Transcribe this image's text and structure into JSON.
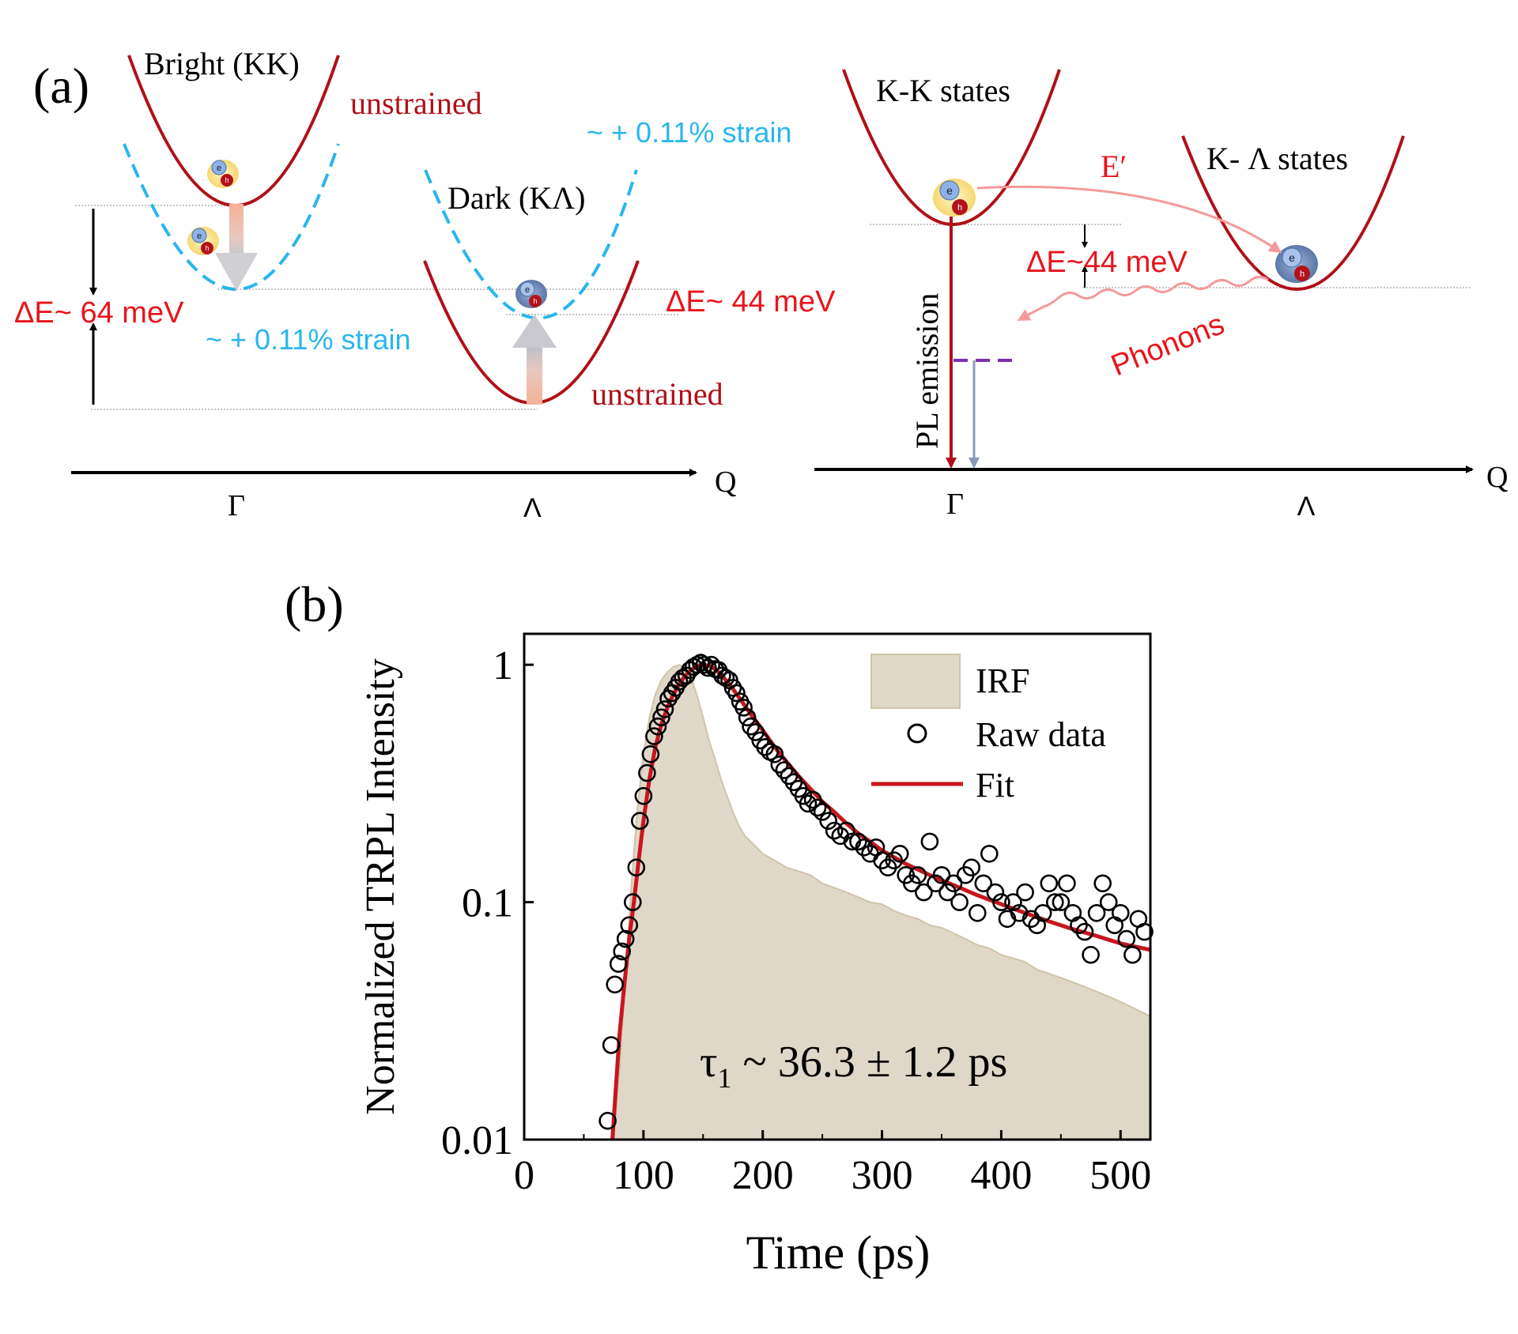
{
  "panel_a": {
    "label": "(a)",
    "left": {
      "bright_label": "Bright (KK)",
      "dark_label": "Dark (KΛ)",
      "unstrained_label_1": "unstrained",
      "unstrained_label_2": "unstrained",
      "strain_label_1": "~ + 0.11% strain",
      "strain_label_2": "~ + 0.11% strain",
      "delta_e_label_1": "ΔE~ 64 meV",
      "delta_e_label_2": "ΔE~ 44 meV",
      "axis_label": "Q",
      "gamma_label": "Γ",
      "lambda_label": "Λ"
    },
    "right": {
      "kk_label": "K-K states",
      "klambda_label": "K- Λ states",
      "e_prime_label": "E′",
      "delta_e_label": "ΔE~44 meV",
      "pl_emission_label": "PL emission",
      "phonons_label": "Phonons",
      "axis_label": "Q",
      "gamma_label": "Γ",
      "lambda_label": "Λ"
    },
    "exciton": {
      "electron": "e",
      "hole": "h"
    },
    "colors": {
      "unstrained": "#b01018",
      "strained": "#29b6ee",
      "text_red": "#e8141c",
      "arrow_fill": "#f4b296",
      "phonon": "#f59a9a",
      "dashed_purple": "#7b2fb0"
    }
  },
  "panel_b": {
    "label": "(b)",
    "annotation": "τ",
    "annotation_sub": "1",
    "annotation_rest": " ~ 36.3 ± 1.2  ps"
  },
  "chart_data": {
    "type": "scatter",
    "title": "",
    "xlabel": "Time (ps)",
    "ylabel": "Normalized TRPL Intensity",
    "xlim": [
      0,
      525
    ],
    "ylim": [
      0.01,
      1.35
    ],
    "yscale": "log",
    "xticks": [
      0,
      100,
      200,
      300,
      400,
      500
    ],
    "xtick_labels": [
      "0",
      "100",
      "200",
      "300",
      "400",
      "500"
    ],
    "yticks": [
      0.01,
      0.1,
      1
    ],
    "ytick_labels": [
      "0.01",
      "0.1",
      "1"
    ],
    "legend": {
      "position": "top-right",
      "entries": [
        "IRF",
        "Raw data",
        "Fit"
      ]
    },
    "colors": {
      "irf": "#dfd8c8",
      "irf_edge": "#cfc4a8",
      "fit": "#c8161e",
      "raw": "#000000"
    },
    "series": [
      {
        "name": "IRF",
        "kind": "area",
        "x": [
          75,
          80,
          85,
          90,
          95,
          100,
          105,
          110,
          115,
          120,
          125,
          130,
          135,
          140,
          145,
          150,
          155,
          160,
          165,
          170,
          175,
          180,
          185,
          190,
          195,
          200,
          210,
          220,
          230,
          240,
          250,
          260,
          270,
          280,
          290,
          300,
          310,
          320,
          330,
          340,
          350,
          360,
          370,
          380,
          390,
          400,
          410,
          420,
          430,
          440,
          450,
          460,
          470,
          480,
          490,
          500,
          510,
          520,
          525
        ],
        "y": [
          0.01,
          0.02,
          0.05,
          0.12,
          0.25,
          0.42,
          0.6,
          0.75,
          0.86,
          0.93,
          0.98,
          1.0,
          0.97,
          0.88,
          0.74,
          0.6,
          0.48,
          0.4,
          0.33,
          0.28,
          0.24,
          0.21,
          0.19,
          0.18,
          0.17,
          0.16,
          0.15,
          0.14,
          0.135,
          0.13,
          0.12,
          0.115,
          0.11,
          0.105,
          0.1,
          0.098,
          0.092,
          0.088,
          0.085,
          0.08,
          0.078,
          0.074,
          0.07,
          0.066,
          0.064,
          0.06,
          0.058,
          0.056,
          0.052,
          0.05,
          0.048,
          0.046,
          0.044,
          0.042,
          0.04,
          0.038,
          0.036,
          0.034,
          0.033
        ]
      },
      {
        "name": "Raw data",
        "kind": "scatter",
        "x": [
          70,
          73,
          76,
          79,
          82,
          85,
          88,
          91,
          94,
          97,
          100,
          103,
          106,
          109,
          112,
          115,
          118,
          121,
          124,
          127,
          130,
          133,
          136,
          139,
          142,
          145,
          148,
          151,
          154,
          157,
          160,
          163,
          166,
          169,
          172,
          175,
          178,
          181,
          184,
          187,
          190,
          194,
          198,
          202,
          206,
          210,
          214,
          218,
          222,
          226,
          230,
          234,
          238,
          242,
          246,
          250,
          255,
          260,
          265,
          270,
          275,
          280,
          285,
          290,
          295,
          300,
          305,
          310,
          315,
          320,
          325,
          330,
          335,
          340,
          345,
          350,
          355,
          360,
          365,
          370,
          375,
          380,
          385,
          390,
          395,
          400,
          405,
          410,
          415,
          420,
          425,
          430,
          435,
          440,
          445,
          450,
          455,
          460,
          465,
          470,
          475,
          480,
          485,
          490,
          495,
          500,
          505,
          510,
          515,
          520
        ],
        "y": [
          0.012,
          0.025,
          0.045,
          0.055,
          0.062,
          0.07,
          0.08,
          0.1,
          0.14,
          0.22,
          0.28,
          0.35,
          0.42,
          0.5,
          0.55,
          0.6,
          0.65,
          0.72,
          0.76,
          0.8,
          0.85,
          0.88,
          0.9,
          0.95,
          0.98,
          1.0,
          1.02,
          1.0,
          0.97,
          1.0,
          0.96,
          0.95,
          0.9,
          0.88,
          0.86,
          0.8,
          0.76,
          0.7,
          0.66,
          0.6,
          0.55,
          0.52,
          0.48,
          0.45,
          0.43,
          0.42,
          0.38,
          0.36,
          0.34,
          0.32,
          0.3,
          0.28,
          0.26,
          0.27,
          0.25,
          0.24,
          0.22,
          0.2,
          0.19,
          0.2,
          0.18,
          0.18,
          0.17,
          0.16,
          0.17,
          0.15,
          0.14,
          0.15,
          0.16,
          0.13,
          0.12,
          0.13,
          0.11,
          0.18,
          0.12,
          0.13,
          0.11,
          0.12,
          0.1,
          0.13,
          0.14,
          0.09,
          0.12,
          0.16,
          0.11,
          0.1,
          0.085,
          0.1,
          0.09,
          0.11,
          0.085,
          0.08,
          0.09,
          0.12,
          0.1,
          0.1,
          0.12,
          0.09,
          0.08,
          0.075,
          0.06,
          0.09,
          0.12,
          0.1,
          0.08,
          0.09,
          0.07,
          0.06,
          0.085,
          0.075
        ]
      },
      {
        "name": "Fit",
        "kind": "line",
        "x": [
          74,
          77,
          80,
          84,
          88,
          92,
          96,
          100,
          105,
          110,
          115,
          120,
          125,
          130,
          135,
          140,
          145,
          150,
          155,
          160,
          165,
          170,
          175,
          180,
          190,
          200,
          210,
          220,
          230,
          240,
          250,
          260,
          270,
          280,
          290,
          300,
          320,
          340,
          360,
          380,
          400,
          420,
          440,
          460,
          480,
          500,
          525
        ],
        "y": [
          0.01,
          0.017,
          0.028,
          0.045,
          0.07,
          0.1,
          0.15,
          0.22,
          0.33,
          0.45,
          0.56,
          0.66,
          0.75,
          0.83,
          0.9,
          0.95,
          0.99,
          1.0,
          0.99,
          0.96,
          0.91,
          0.85,
          0.79,
          0.73,
          0.62,
          0.53,
          0.45,
          0.39,
          0.34,
          0.3,
          0.265,
          0.24,
          0.215,
          0.195,
          0.18,
          0.165,
          0.145,
          0.13,
          0.118,
          0.107,
          0.098,
          0.09,
          0.083,
          0.077,
          0.072,
          0.067,
          0.063
        ]
      }
    ]
  }
}
